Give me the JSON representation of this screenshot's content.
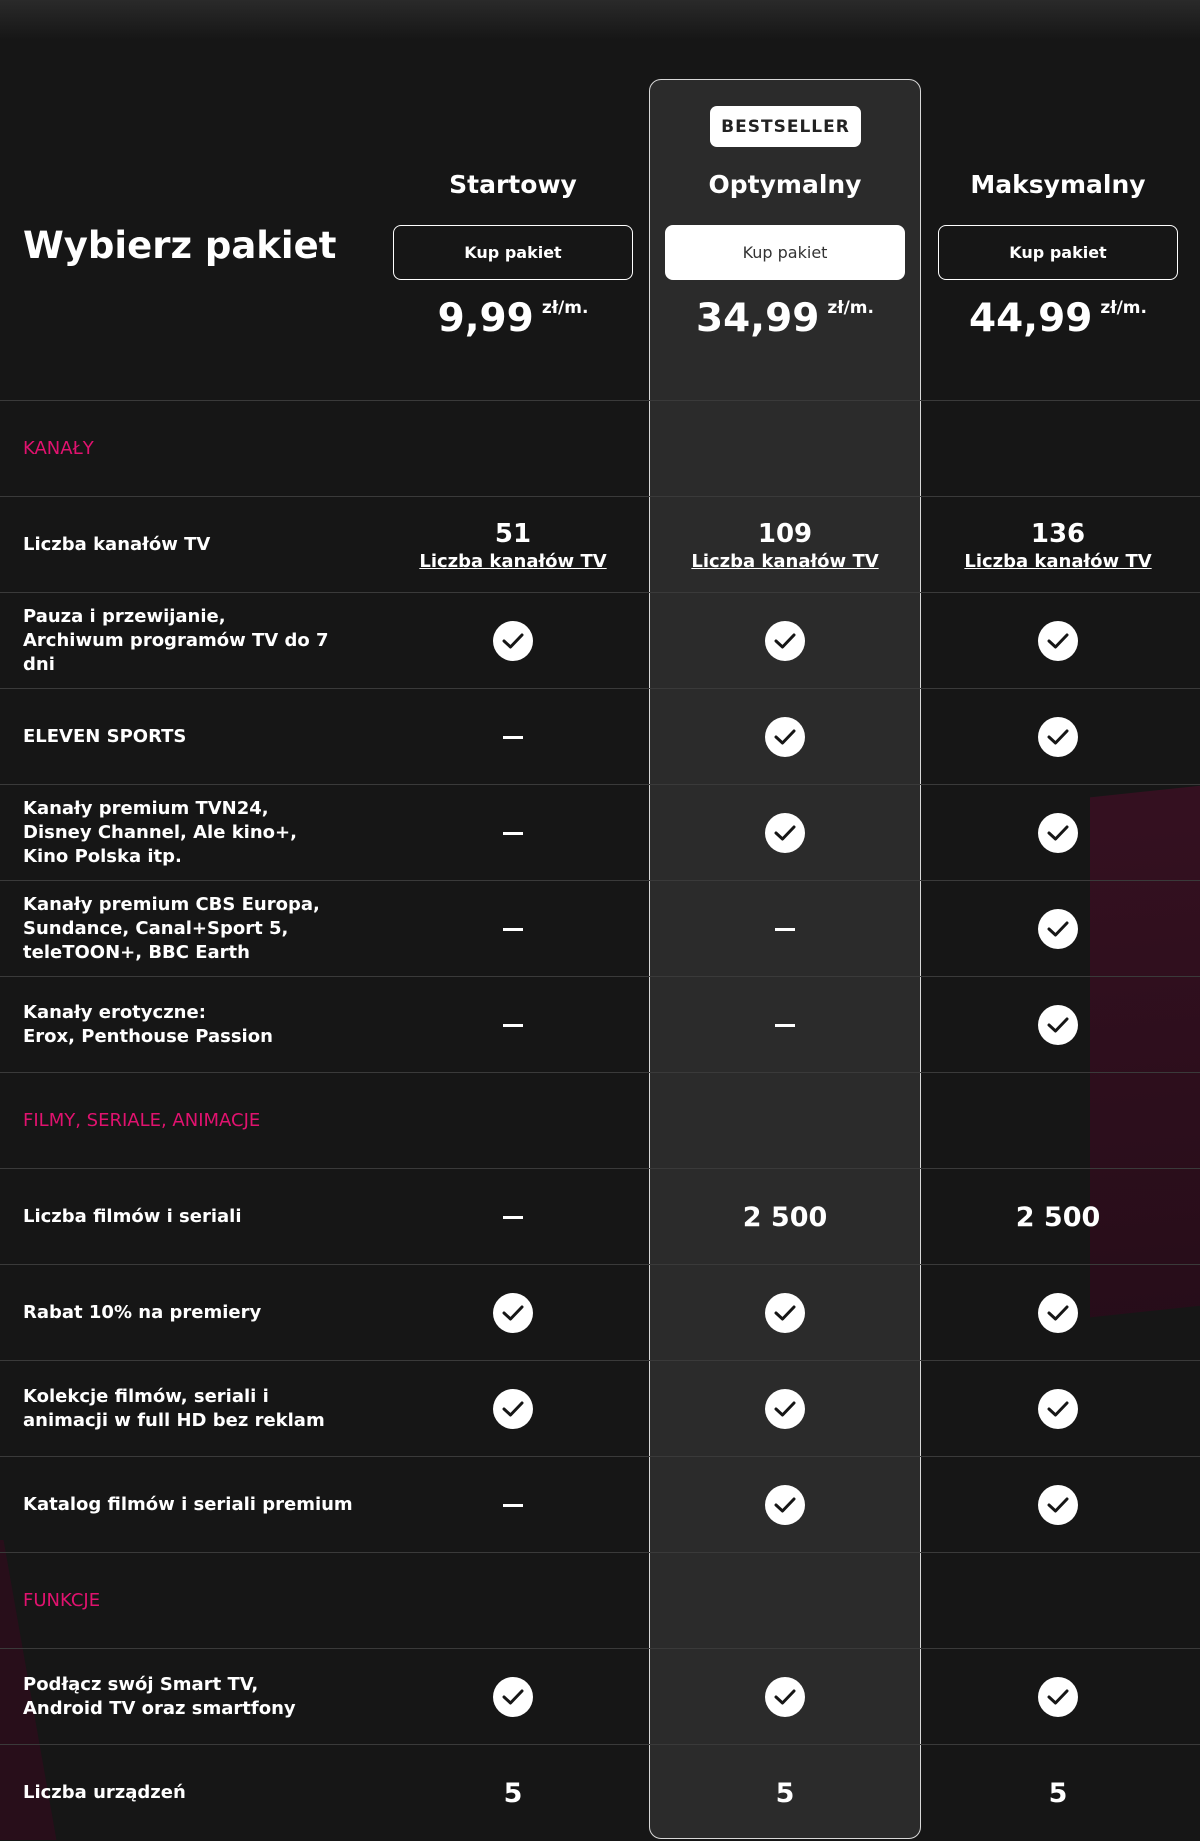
{
  "page_title": "Wybierz pakiet",
  "badge": "BESTSELLER",
  "plans": [
    {
      "name": "Startowy",
      "button": "Kup pakiet",
      "price": "9,99",
      "unit": "zł/m."
    },
    {
      "name": "Optymalny",
      "button": "Kup pakiet",
      "price": "34,99",
      "unit": "zł/m."
    },
    {
      "name": "Maksymalny",
      "button": "Kup pakiet",
      "price": "44,99",
      "unit": "zł/m."
    }
  ],
  "rows": [
    {
      "type": "section",
      "label": "KANAŁY"
    },
    {
      "type": "row",
      "label": "Liczba kanałów TV",
      "cells": [
        {
          "kind": "number",
          "value": "51",
          "link": "Liczba kanałów TV"
        },
        {
          "kind": "number",
          "value": "109",
          "link": "Liczba kanałów TV"
        },
        {
          "kind": "number",
          "value": "136",
          "link": "Liczba kanałów TV"
        }
      ]
    },
    {
      "type": "row",
      "label": "Pauza i przewijanie,\nArchiwum programów TV do 7 dni",
      "cells": [
        {
          "kind": "check"
        },
        {
          "kind": "check"
        },
        {
          "kind": "check"
        }
      ]
    },
    {
      "type": "row",
      "label": "ELEVEN SPORTS",
      "cells": [
        {
          "kind": "dash"
        },
        {
          "kind": "check"
        },
        {
          "kind": "check"
        }
      ]
    },
    {
      "type": "row",
      "label": "Kanały premium TVN24,\nDisney Channel, Ale kino+,\nKino Polska itp.",
      "cells": [
        {
          "kind": "dash"
        },
        {
          "kind": "check"
        },
        {
          "kind": "check"
        }
      ]
    },
    {
      "type": "row",
      "label": "Kanały premium CBS Europa,\nSundance, Canal+Sport 5,\nteleTOON+, BBC Earth",
      "cells": [
        {
          "kind": "dash"
        },
        {
          "kind": "dash"
        },
        {
          "kind": "check"
        }
      ]
    },
    {
      "type": "row",
      "label": "Kanały erotyczne:\nErox, Penthouse Passion",
      "cells": [
        {
          "kind": "dash"
        },
        {
          "kind": "dash"
        },
        {
          "kind": "check"
        }
      ]
    },
    {
      "type": "section",
      "label": "FILMY, SERIALE, ANIMACJE"
    },
    {
      "type": "row",
      "label": "Liczba filmów i seriali",
      "cells": [
        {
          "kind": "dash"
        },
        {
          "kind": "text",
          "value": "2 500"
        },
        {
          "kind": "text",
          "value": "2 500"
        }
      ]
    },
    {
      "type": "row",
      "label": "Rabat 10% na premiery",
      "cells": [
        {
          "kind": "check"
        },
        {
          "kind": "check"
        },
        {
          "kind": "check"
        }
      ]
    },
    {
      "type": "row",
      "label": "Kolekcje filmów, seriali i\nanimacji w full HD bez reklam",
      "cells": [
        {
          "kind": "check"
        },
        {
          "kind": "check"
        },
        {
          "kind": "check"
        }
      ]
    },
    {
      "type": "row",
      "label": "Katalog filmów i seriali premium",
      "cells": [
        {
          "kind": "dash"
        },
        {
          "kind": "check"
        },
        {
          "kind": "check"
        }
      ]
    },
    {
      "type": "section",
      "label": "FUNKCJE"
    },
    {
      "type": "row",
      "label": "Podłącz swój Smart TV,\nAndroid TV oraz smartfony",
      "cells": [
        {
          "kind": "check"
        },
        {
          "kind": "check"
        },
        {
          "kind": "check"
        }
      ]
    },
    {
      "type": "row",
      "label": "Liczba urządzeń",
      "cells": [
        {
          "kind": "text",
          "value": "5"
        },
        {
          "kind": "text",
          "value": "5"
        },
        {
          "kind": "text",
          "value": "5"
        }
      ]
    }
  ],
  "colors": {
    "accent": "#e1126f",
    "background": "#161616",
    "highlight_column": "#2b2b2b"
  },
  "icons": {
    "check": "check-circle-icon",
    "dash": "dash-icon"
  }
}
